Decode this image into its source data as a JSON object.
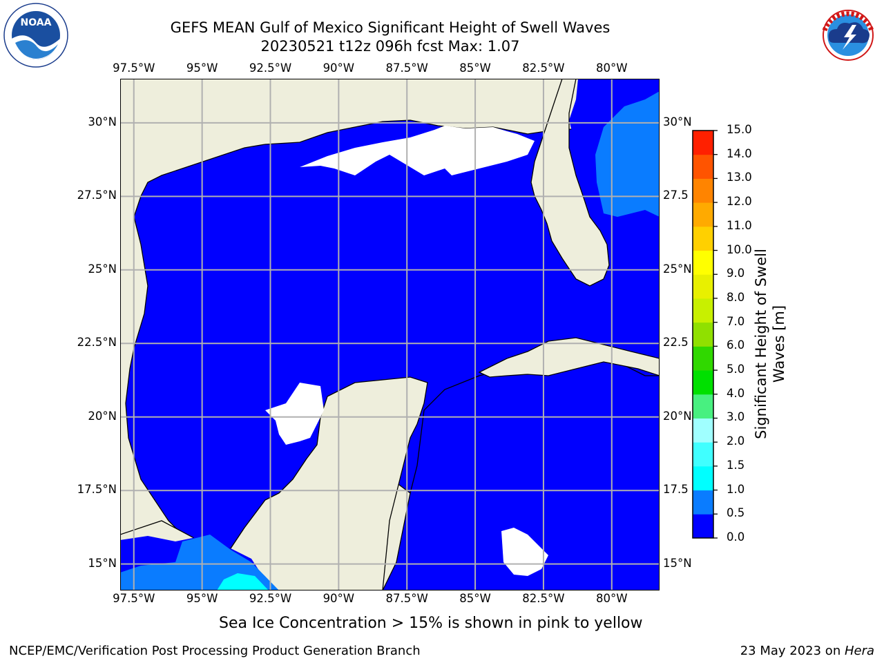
{
  "title": {
    "line1": "GEFS MEAN Gulf of Mexico Significant Height of Swell Waves",
    "line2": "20230521 t12z 096h fcst   Max: 1.07"
  },
  "logos": {
    "left": {
      "name": "NOAA",
      "ring_text": "NATIONAL OCEANIC AND ATMOSPHERIC ADMINISTRATION · U.S. DEPARTMENT OF COMMERCE"
    },
    "right": {
      "name": "NATIONAL WEATHER SERVICE"
    }
  },
  "map": {
    "projection": "cylindrical",
    "lon_range": [
      -98.0,
      -78.25
    ],
    "lat_range": [
      14.1,
      31.5
    ],
    "grid": true,
    "lon_ticks": [
      "97.5°W",
      "95°W",
      "92.5°W",
      "90°W",
      "87.5°W",
      "85°W",
      "82.5°W",
      "80°W"
    ],
    "lat_ticks_left": [
      "30°N",
      "27.5°N",
      "25°N",
      "22.5°N",
      "20°N",
      "17.5°N",
      "15°N"
    ],
    "lat_ticks_right": [
      "30°N",
      "27.5",
      "25°N",
      "22.5",
      "20°N",
      "17.5",
      "15°N"
    ],
    "colors": {
      "land": "#eeeedc",
      "sea_0_05": "#0000ff",
      "sea_05_1": "#0a7cff",
      "sea_1_15": "#00ffff",
      "missing": "#ffffff",
      "coast": "#000000",
      "grid": "#b0b0b0"
    }
  },
  "colorbar": {
    "label": "Significant Height of Swell Waves [m]",
    "ticks": [
      "15.0",
      "14.0",
      "13.0",
      "12.0",
      "11.0",
      "10.0",
      "9.0",
      "8.0",
      "7.0",
      "6.0",
      "5.0",
      "4.0",
      "3.0",
      "2.0",
      "1.5",
      "1.0",
      "0.5",
      "0.0"
    ],
    "levels": [
      0.0,
      0.5,
      1.0,
      1.5,
      2.0,
      3.0,
      4.0,
      5.0,
      6.0,
      7.0,
      8.0,
      9.0,
      10.0,
      11.0,
      12.0,
      13.0,
      14.0,
      15.0
    ],
    "colors": [
      "#0000ff",
      "#0a7cff",
      "#00ffff",
      "#40ffff",
      "#a0ffff",
      "#48f080",
      "#00e000",
      "#30d800",
      "#90e000",
      "#c8f000",
      "#e8f000",
      "#ffff00",
      "#ffd000",
      "#ffaa00",
      "#ff8400",
      "#ff5400",
      "#ff2000"
    ]
  },
  "note": "Sea Ice Concentration > 15% is shown in pink to yellow",
  "footer": {
    "left": "NCEP/EMC/Verification Post Processing Product Generation Branch",
    "right_prefix": "23 May 2023 on ",
    "right_host": "Hera"
  }
}
